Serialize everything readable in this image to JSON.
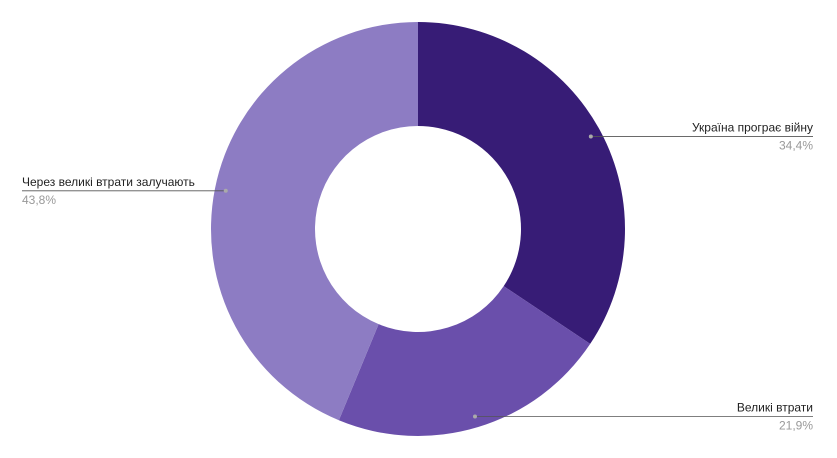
{
  "chart_data": {
    "type": "donut",
    "categories": [
      "Україна програє війну",
      "Великі втрати",
      "Через великі втрати залучають"
    ],
    "values": [
      34.4,
      21.9,
      43.8
    ],
    "value_labels": [
      "34,4%",
      "21,9%",
      "43,8%"
    ],
    "colors": [
      "#371c76",
      "#6a4fab",
      "#8d7cc3"
    ]
  }
}
